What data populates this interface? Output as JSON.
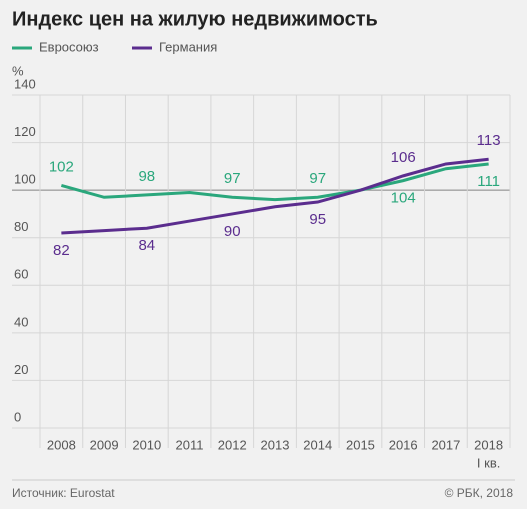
{
  "chart_data": {
    "type": "line",
    "title": "Индекс цен на жилую недвижимость",
    "y_axis_label": "%",
    "categories": [
      "2008",
      "2009",
      "2010",
      "2011",
      "2012",
      "2013",
      "2014",
      "2015",
      "2016",
      "2017",
      "2018"
    ],
    "category_sublabels": [
      null,
      null,
      null,
      null,
      null,
      null,
      null,
      null,
      null,
      null,
      "I кв."
    ],
    "series": [
      {
        "name": "Евросоюз",
        "color": "#2aa77c",
        "values": [
          102,
          97,
          98,
          99,
          97,
          96,
          97,
          100,
          104,
          109,
          111
        ]
      },
      {
        "name": "Германия",
        "color": "#5b2d8e",
        "values": [
          82,
          83,
          84,
          87,
          90,
          93,
          95,
          100,
          106,
          111,
          113
        ]
      }
    ],
    "label_every": 2,
    "ylim": [
      0,
      140
    ],
    "yticks": [
      0,
      20,
      40,
      60,
      80,
      100,
      120,
      140
    ],
    "reference_line": 100,
    "grid": true,
    "source": "Источник: Eurostat",
    "copyright": "© РБК, 2018"
  }
}
